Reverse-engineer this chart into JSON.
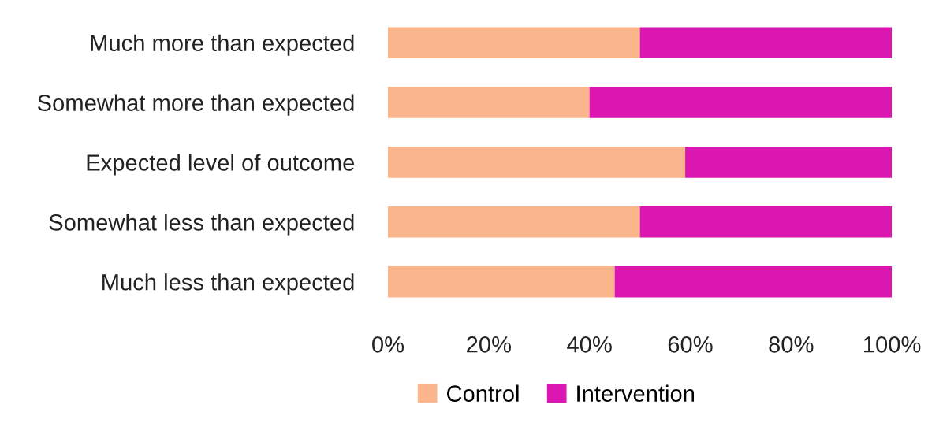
{
  "chart_data": {
    "type": "bar",
    "orientation": "horizontal",
    "stacked": true,
    "categories": [
      "Much more than expected",
      "Somewhat more than expected",
      "Expected level of outcome",
      "Somewhat less than expected",
      "Much less than expected"
    ],
    "series": [
      {
        "name": "Control",
        "color": "#fbb58c",
        "values": [
          50,
          40,
          59,
          50,
          45
        ]
      },
      {
        "name": "Intervention",
        "color": "#dc16b0",
        "values": [
          50,
          60,
          41,
          50,
          55
        ]
      }
    ],
    "xlim": [
      0,
      100
    ],
    "xticks": [
      {
        "value": 0,
        "label": "0%"
      },
      {
        "value": 20,
        "label": "20%"
      },
      {
        "value": 40,
        "label": "40%"
      },
      {
        "value": 60,
        "label": "60%"
      },
      {
        "value": 80,
        "label": "80%"
      },
      {
        "value": 100,
        "label": "100%"
      }
    ],
    "grid": false,
    "legend": "bottom"
  }
}
